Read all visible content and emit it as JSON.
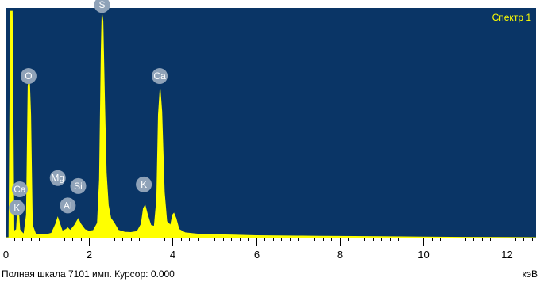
{
  "chart_data": {
    "type": "area",
    "series_name": "Спектр 1",
    "x_unit": "кэВ",
    "xlim": [
      0,
      12.7
    ],
    "ylim": [
      0,
      7101
    ],
    "x_ticks": [
      {
        "value": 0,
        "label": "0"
      },
      {
        "value": 2,
        "label": "2"
      },
      {
        "value": 4,
        "label": "4"
      },
      {
        "value": 6,
        "label": "6"
      },
      {
        "value": 8,
        "label": "8"
      },
      {
        "value": 10,
        "label": "10"
      },
      {
        "value": 12,
        "label": "12"
      }
    ],
    "spectrum": [
      [
        0.0,
        0
      ],
      [
        0.08,
        0
      ],
      [
        0.12,
        7000
      ],
      [
        0.16,
        7000
      ],
      [
        0.2,
        200
      ],
      [
        0.26,
        250
      ],
      [
        0.3,
        1100
      ],
      [
        0.34,
        250
      ],
      [
        0.38,
        180
      ],
      [
        0.44,
        100
      ],
      [
        0.5,
        700
      ],
      [
        0.54,
        4700
      ],
      [
        0.57,
        4900
      ],
      [
        0.6,
        3800
      ],
      [
        0.64,
        400
      ],
      [
        0.72,
        110
      ],
      [
        0.85,
        90
      ],
      [
        1.0,
        100
      ],
      [
        1.1,
        140
      ],
      [
        1.2,
        420
      ],
      [
        1.25,
        620
      ],
      [
        1.3,
        420
      ],
      [
        1.36,
        200
      ],
      [
        1.45,
        260
      ],
      [
        1.49,
        300
      ],
      [
        1.55,
        220
      ],
      [
        1.65,
        380
      ],
      [
        1.74,
        580
      ],
      [
        1.8,
        420
      ],
      [
        1.9,
        250
      ],
      [
        2.0,
        200
      ],
      [
        2.1,
        220
      ],
      [
        2.2,
        450
      ],
      [
        2.25,
        1800
      ],
      [
        2.29,
        5800
      ],
      [
        2.31,
        6900
      ],
      [
        2.33,
        6700
      ],
      [
        2.37,
        4200
      ],
      [
        2.41,
        2000
      ],
      [
        2.46,
        1000
      ],
      [
        2.52,
        600
      ],
      [
        2.6,
        450
      ],
      [
        2.7,
        230
      ],
      [
        2.85,
        170
      ],
      [
        3.0,
        160
      ],
      [
        3.15,
        190
      ],
      [
        3.25,
        420
      ],
      [
        3.3,
        900
      ],
      [
        3.34,
        1000
      ],
      [
        3.4,
        700
      ],
      [
        3.48,
        380
      ],
      [
        3.56,
        350
      ],
      [
        3.62,
        1200
      ],
      [
        3.66,
        3800
      ],
      [
        3.7,
        4600
      ],
      [
        3.74,
        3900
      ],
      [
        3.8,
        1400
      ],
      [
        3.86,
        500
      ],
      [
        3.95,
        380
      ],
      [
        4.0,
        700
      ],
      [
        4.03,
        750
      ],
      [
        4.08,
        600
      ],
      [
        4.15,
        260
      ],
      [
        4.3,
        150
      ],
      [
        4.6,
        110
      ],
      [
        5.0,
        90
      ],
      [
        5.5,
        80
      ],
      [
        6.0,
        60
      ],
      [
        6.5,
        55
      ],
      [
        7.0,
        50
      ],
      [
        7.5,
        45
      ],
      [
        8.0,
        40
      ],
      [
        9.0,
        30
      ],
      [
        10.0,
        20
      ],
      [
        11.0,
        10
      ],
      [
        12.0,
        5
      ],
      [
        12.7,
        0
      ]
    ],
    "peaks": [
      {
        "label": "S",
        "x": 2.31,
        "y": 6900
      },
      {
        "label": "O",
        "x": 0.55,
        "y": 4700
      },
      {
        "label": "Ca",
        "x": 3.69,
        "y": 4700
      },
      {
        "label": "Mg",
        "x": 1.25,
        "y": 1550
      },
      {
        "label": "Si",
        "x": 1.74,
        "y": 1300
      },
      {
        "label": "K",
        "x": 3.31,
        "y": 1350
      },
      {
        "label": "Ca",
        "x": 0.34,
        "y": 1200
      },
      {
        "label": "Al",
        "x": 1.49,
        "y": 700
      },
      {
        "label": "K",
        "x": 0.27,
        "y": 630
      }
    ],
    "colors": {
      "background": "#0a3566",
      "fill": "#ffff00",
      "series_name": "#ffff00",
      "peak_marker": "#8fa2b8",
      "axis": "#000000"
    }
  },
  "status": {
    "text": "Полная шкала 7101 имп. Курсор: 0.000",
    "unit": "кэВ"
  }
}
